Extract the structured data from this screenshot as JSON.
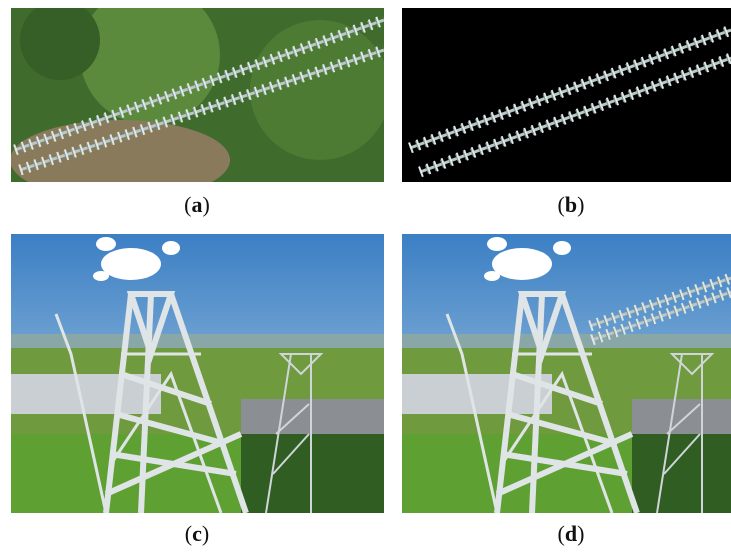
{
  "figure": {
    "captions": [
      [
        "(",
        "a",
        ")"
      ],
      [
        "(",
        "b",
        ")"
      ],
      [
        "(",
        "c",
        ")"
      ],
      [
        "(",
        "d",
        ")"
      ]
    ]
  }
}
